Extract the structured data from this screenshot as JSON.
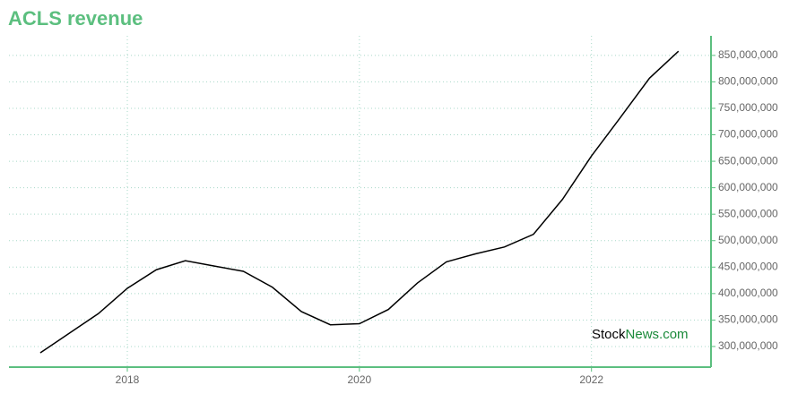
{
  "chart_data": {
    "type": "line",
    "title": "ACLS revenue",
    "watermark": {
      "first": "Stock",
      "second": "News.com"
    },
    "x": [
      2017.25,
      2017.5,
      2017.75,
      2018,
      2018.25,
      2018.5,
      2018.75,
      2019,
      2019.25,
      2019.5,
      2019.75,
      2020,
      2020.25,
      2020.5,
      2020.75,
      2021,
      2021.25,
      2021.5,
      2021.75,
      2022,
      2022.25,
      2022.5,
      2022.75
    ],
    "series": [
      {
        "color": "#000000",
        "values": [
          288000000,
          325000000,
          362000000,
          410000000,
          445000000,
          462000000,
          452000000,
          442000000,
          412000000,
          366000000,
          341000000,
          343000000,
          370000000,
          420000000,
          460000000,
          475000000,
          488000000,
          512000000,
          578000000,
          660000000,
          733000000,
          807000000,
          858000000
        ]
      }
    ],
    "xlim": [
      2016.98,
      2023.03
    ],
    "xticks": [
      2018,
      2020,
      2022
    ],
    "ylim": [
      261000000,
      887000000
    ],
    "yticks": [
      {
        "value": 300000000,
        "label": "300,000,000"
      },
      {
        "value": 350000000,
        "label": "350,000,000"
      },
      {
        "value": 400000000,
        "label": "400,000,000"
      },
      {
        "value": 450000000,
        "label": "450,000,000"
      },
      {
        "value": 500000000,
        "label": "500,000,000"
      },
      {
        "value": 550000000,
        "label": "550,000,000"
      },
      {
        "value": 600000000,
        "label": "600,000,000"
      },
      {
        "value": 650000000,
        "label": "650,000,000"
      },
      {
        "value": 700000000,
        "label": "700,000,000"
      },
      {
        "value": 750000000,
        "label": "750,000,000"
      },
      {
        "value": 800000000,
        "label": "800,000,000"
      },
      {
        "value": 850000000,
        "label": "850,000,000"
      }
    ],
    "grid": true,
    "axis_color": "#5cbf7f"
  }
}
